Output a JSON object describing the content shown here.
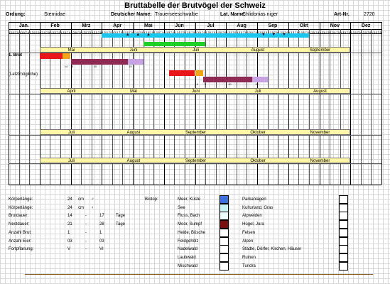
{
  "title": "Bruttabelle der Brutvögel der Schweiz",
  "header": {
    "ordnung_label": "Ordung:",
    "ordnung": "Sternidae",
    "deutscher_label": "Deutscher Name:",
    "deutscher": "Trauerseeschwalbe",
    "lat_label": "Lat. Name:",
    "lat": "Chlidonias niger",
    "art_label": "Art-Nr.",
    "art": "2720"
  },
  "months": [
    "Jan.",
    "Feb",
    "Mrz",
    "Apr",
    "Mai",
    "Jun",
    "Jul",
    "Aug",
    "Sep",
    "Okt",
    "Nov",
    "Dez"
  ],
  "day_numbers": [
    "1",
    "2",
    "3",
    "4",
    "5",
    "6",
    "7",
    "8",
    "9",
    "10"
  ],
  "season_markers": [
    "▲",
    "▲",
    "▲",
    "▼",
    "▼",
    "▼"
  ],
  "row_labels": {
    "brut1": "1. Brut",
    "letzt": "(Letztmögliche)"
  },
  "bands": [
    {
      "labels": [
        "Mai",
        "Juni",
        "Juli",
        "August",
        "September"
      ]
    },
    {
      "labels": [
        "April",
        "Mai",
        "Juni",
        "Juli",
        "August"
      ]
    },
    {
      "labels": [
        "Juli",
        "August",
        "September",
        "Oktober",
        "November"
      ]
    },
    {
      "labels": [
        "Juli",
        "August",
        "September",
        "Oktober",
        "November"
      ]
    }
  ],
  "brut1_ticks": [
    "14",
    "3",
    "10",
    "15"
  ],
  "letzt_ticks": [
    "14",
    "3",
    "10",
    "15"
  ],
  "bottom": {
    "koerper1_label": "Körperlänge:",
    "koerper1_val": "24",
    "koerper1_unit": "cm",
    "koerper1_sym": "♂",
    "koerper2_label": "Körperlänge:",
    "koerper2_val": "24",
    "koerper2_unit": "cm",
    "koerper2_sym": "♀",
    "brut_label": "Brutdauer:",
    "brut_a": "14",
    "brut_dash": "-",
    "brut_b": "17",
    "brut_unit": "Tage",
    "nest_label": "Nestdauer:",
    "nest_a": "21",
    "nest_dash": "-",
    "nest_b": "28",
    "nest_unit": "Tage",
    "anzbrut_label": "Anzahl Brut:",
    "anzbrut_a": "1",
    "anzbrut_dash": "-",
    "anzbrut_b": "1",
    "anzeier_label": "Anzahl Eier:",
    "anzeier_a": "03",
    "anzeier_dash": "-",
    "anzeier_b": "03",
    "fort_label": "Fortpflanung:",
    "fort_a": "V",
    "fort_dash": "-",
    "fort_b": "VI",
    "biotop_label": "Biotop:",
    "habitats_left": [
      "Meer, Küste",
      "See",
      "Fluss, Bach",
      "Moor, Sumpf",
      "Heide, Büsche",
      "Feldgehölz",
      "Nadelwald",
      "Laubwald",
      "Mischwald"
    ],
    "habitats_right": [
      "Parkanlagen",
      "Kulturland, Gras",
      "Alpweiden",
      "Hügel, Jura",
      "Felsen",
      "Alpen",
      "Städte, Dörfer, Kirchen, Häuser",
      "Ruinen",
      "Tundra"
    ],
    "box_colors": [
      "#3c6fe0",
      "#c8f2f4",
      "#eafcfc",
      "#7a0f12",
      "#ffffff",
      "#ffffff"
    ]
  },
  "colors": {
    "migration": "#19c6ee",
    "breeding": "#1ecf2a",
    "eggs": "#e8161a",
    "hatch": "#f2a317",
    "nestling": "#8f2a55",
    "fledge": "#c7a3e4",
    "band": "#fff6a8",
    "brown_line": "#8b5a2b"
  }
}
